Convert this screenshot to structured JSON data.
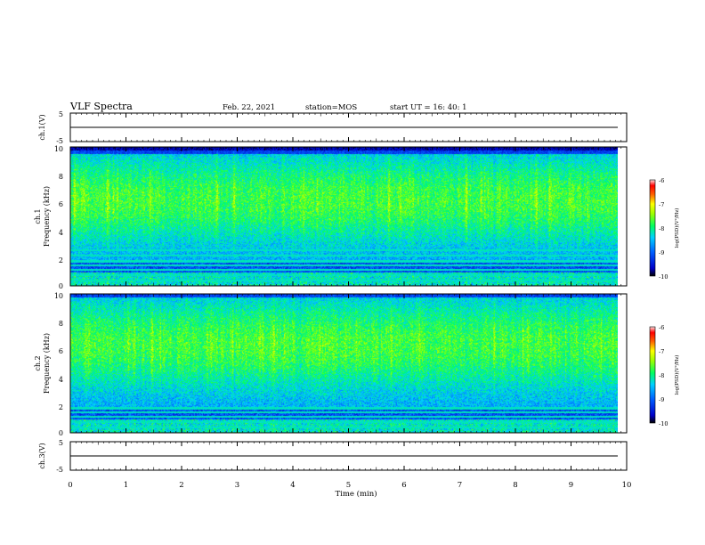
{
  "header": {
    "title": "VLF Spectra",
    "date": "Feb. 22, 2021",
    "station": "station=MOS",
    "start": "start  UT =   16: 40: 1"
  },
  "chart_data": [
    {
      "type": "line",
      "panel": "ch1-waveform",
      "ylabel": "ch.1(V)",
      "ylim": [
        -5,
        5
      ],
      "yticks": [
        "5",
        "-5"
      ],
      "x": [
        0,
        9.85
      ],
      "y": [
        0,
        0
      ]
    },
    {
      "type": "heatmap",
      "panel": "ch1-spectrogram",
      "ylabel_top": "ch.1",
      "ylabel": "Frequency (kHz)",
      "ylim": [
        0,
        10
      ],
      "yticks": [
        "0",
        "2",
        "4",
        "6",
        "8",
        "10"
      ],
      "xlim": [
        0,
        10
      ],
      "data_extent_x": [
        0,
        9.85
      ],
      "colorbar": {
        "label": "log(PSD)(V²/Hz)",
        "range": [
          -10,
          -6
        ],
        "ticks": [
          "-6",
          "-7",
          "-8",
          "-9",
          "-10"
        ]
      },
      "narrowband_lines_khz": [
        0.4,
        0.8,
        1.2,
        1.5,
        1.8,
        2.2,
        2.6
      ],
      "activity_band_khz": [
        1.8,
        9.5
      ]
    },
    {
      "type": "heatmap",
      "panel": "ch2-spectrogram",
      "ylabel_top": "ch.2",
      "ylabel": "Frequency (kHz)",
      "ylim": [
        0,
        10
      ],
      "yticks": [
        "0",
        "2",
        "4",
        "6",
        "8",
        "10"
      ],
      "xlim": [
        0,
        10
      ],
      "data_extent_x": [
        0,
        9.85
      ],
      "colorbar": {
        "label": "log(PSD)(V²/Hz)",
        "range": [
          -10,
          -6
        ],
        "ticks": [
          "-6",
          "-7",
          "-8",
          "-9",
          "-10"
        ]
      },
      "narrowband_lines_khz": [
        0.4,
        0.8,
        1.2,
        1.5,
        1.8
      ],
      "activity_band_khz": [
        1.8,
        9.8
      ]
    },
    {
      "type": "line",
      "panel": "ch3-waveform",
      "ylabel": "ch.3(V)",
      "ylim": [
        -5,
        5
      ],
      "yticks": [
        "5",
        "-5"
      ],
      "x": [
        0,
        9.85
      ],
      "y": [
        0,
        0
      ],
      "xlabel": "Time (min)",
      "xlim": [
        0,
        10
      ],
      "xticks": [
        "0",
        "1",
        "2",
        "3",
        "4",
        "5",
        "6",
        "7",
        "8",
        "9",
        "10"
      ]
    }
  ]
}
